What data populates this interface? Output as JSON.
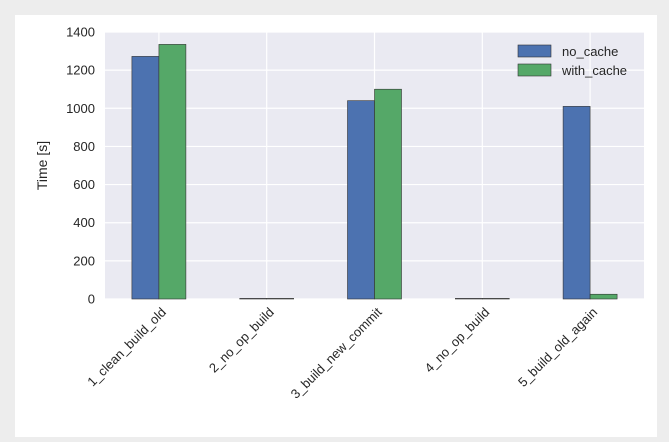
{
  "chart_data": {
    "type": "bar",
    "categories": [
      "1_clean_build_old",
      "2_no_op_build",
      "3_build_new_commit",
      "4_no_op_build",
      "5_build_old_again"
    ],
    "series": [
      {
        "name": "no_cache",
        "values": [
          1272,
          3,
          1040,
          3,
          1010
        ],
        "color": "#4c72b0"
      },
      {
        "name": "with_cache",
        "values": [
          1335,
          3,
          1100,
          3,
          25
        ],
        "color": "#55a868"
      }
    ],
    "ylabel": "Time [s]",
    "xlabel": "",
    "title": "",
    "ylim": [
      0,
      1400
    ],
    "yticks": [
      0,
      200,
      400,
      600,
      800,
      1000,
      1200,
      1400
    ],
    "grid": true,
    "legend_position": "top-right",
    "plot_background": "#eaeaf2"
  }
}
